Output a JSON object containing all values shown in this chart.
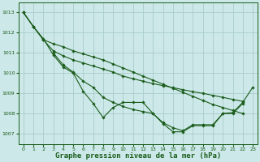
{
  "bg_color": "#cce8e8",
  "grid_color": "#aacccc",
  "line_color": "#1a5c1a",
  "xlabel": "Graphe pression niveau de la mer (hPa)",
  "xlabel_fontsize": 6.5,
  "ylim": [
    1006.5,
    1013.5
  ],
  "xlim": [
    -0.5,
    23.5
  ],
  "yticks": [
    1007,
    1008,
    1009,
    1010,
    1011,
    1012,
    1013
  ],
  "xticks": [
    0,
    1,
    2,
    3,
    4,
    5,
    6,
    7,
    8,
    9,
    10,
    11,
    12,
    13,
    14,
    15,
    16,
    17,
    18,
    19,
    20,
    21,
    22,
    23
  ],
  "lines": [
    {
      "x": [
        0,
        1,
        2,
        3,
        4,
        5,
        6,
        7,
        8,
        9,
        10,
        11,
        12,
        13,
        14,
        15,
        16,
        17,
        18,
        19,
        20,
        21,
        22,
        23
      ],
      "y": [
        1013.0,
        1012.3,
        1011.7,
        1010.9,
        1010.3,
        1010.0,
        1009.1,
        1008.5,
        1007.8,
        1008.3,
        1008.55,
        1008.55,
        1008.55,
        1008.0,
        1007.55,
        1007.3,
        1007.15,
        1007.45,
        1007.45,
        1007.45,
        1008.0,
        1008.05,
        1008.55,
        1009.3
      ]
    },
    {
      "x": [
        0,
        1,
        2,
        3,
        4,
        5,
        6,
        7,
        8,
        9,
        10,
        11,
        12,
        13,
        14,
        15,
        16,
        17,
        18,
        19,
        20,
        21,
        22,
        23
      ],
      "y": [
        1013.0,
        1012.3,
        1011.65,
        1011.1,
        1010.85,
        1010.65,
        1010.5,
        1010.35,
        1010.2,
        1010.05,
        1009.85,
        1009.72,
        1009.6,
        1009.48,
        1009.38,
        1009.28,
        1009.18,
        1009.08,
        1009.0,
        1008.9,
        1008.8,
        1008.7,
        1008.6,
        null
      ]
    },
    {
      "x": [
        0,
        1,
        2,
        3,
        4,
        5,
        6,
        7,
        8,
        9,
        10,
        11,
        12,
        13,
        14,
        15,
        16,
        17,
        18,
        19,
        20,
        21,
        22,
        23
      ],
      "y": [
        1013.0,
        1012.3,
        1011.65,
        1011.45,
        1011.3,
        1011.1,
        1010.95,
        1010.8,
        1010.65,
        1010.45,
        1010.25,
        1010.05,
        1009.85,
        1009.65,
        1009.45,
        1009.25,
        1009.05,
        1008.85,
        1008.65,
        1008.45,
        1008.3,
        1008.15,
        1008.0,
        null
      ]
    },
    {
      "x": [
        3,
        4,
        5,
        6,
        7,
        8,
        9,
        10,
        11,
        12,
        13,
        14,
        15,
        16,
        17,
        18,
        19,
        20,
        21,
        22,
        23
      ],
      "y": [
        1011.0,
        1010.4,
        1010.05,
        1009.6,
        1009.3,
        1008.8,
        1008.55,
        1008.35,
        1008.2,
        1008.1,
        1008.0,
        1007.5,
        1007.1,
        1007.1,
        1007.4,
        1007.4,
        1007.4,
        1008.0,
        1008.0,
        1008.5,
        null
      ]
    }
  ]
}
